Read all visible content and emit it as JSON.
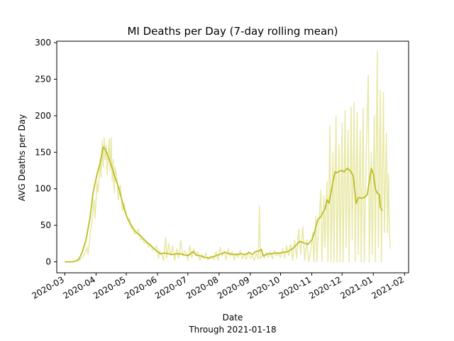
{
  "chart_data": {
    "type": "line",
    "title": "MI Deaths per Day (7-day rolling mean)",
    "xlabel": "Date",
    "xlabel_note": "Through 2021-01-18",
    "ylabel": "AVG Deaths per Day",
    "xlim": [
      "2020-02-22",
      "2021-02-05"
    ],
    "ylim": [
      -15,
      302
    ],
    "x_ticks": [
      "2020-03",
      "2020-04",
      "2020-05",
      "2020-06",
      "2020-07",
      "2020-08",
      "2020-09",
      "2020-10",
      "2020-11",
      "2020-12",
      "2021-01",
      "2021-02"
    ],
    "y_ticks": [
      0,
      50,
      100,
      150,
      200,
      250,
      300
    ],
    "grid": false,
    "legend": "none",
    "colors": {
      "raw": "#e8e8a6",
      "rolling": "#bcbd22"
    },
    "series": [
      {
        "role": "raw",
        "points": [
          [
            "2020-03-01",
            0
          ],
          [
            "2020-03-08",
            0
          ],
          [
            "2020-03-12",
            1
          ],
          [
            "2020-03-15",
            2
          ],
          [
            "2020-03-18",
            5
          ],
          [
            "2020-03-21",
            12
          ],
          [
            "2020-03-23",
            20
          ],
          [
            "2020-03-24",
            10
          ],
          [
            "2020-03-26",
            35
          ],
          [
            "2020-03-28",
            55
          ],
          [
            "2020-03-30",
            85
          ],
          [
            "2020-03-31",
            60
          ],
          [
            "2020-04-02",
            110
          ],
          [
            "2020-04-03",
            95
          ],
          [
            "2020-04-05",
            140
          ],
          [
            "2020-04-06",
            115
          ],
          [
            "2020-04-07",
            165
          ],
          [
            "2020-04-08",
            130
          ],
          [
            "2020-04-09",
            170
          ],
          [
            "2020-04-10",
            140
          ],
          [
            "2020-04-11",
            160
          ],
          [
            "2020-04-12",
            120
          ],
          [
            "2020-04-13",
            145
          ],
          [
            "2020-04-14",
            168
          ],
          [
            "2020-04-15",
            125
          ],
          [
            "2020-04-16",
            170
          ],
          [
            "2020-04-17",
            110
          ],
          [
            "2020-04-18",
            140
          ],
          [
            "2020-04-19",
            95
          ],
          [
            "2020-04-20",
            130
          ],
          [
            "2020-04-22",
            110
          ],
          [
            "2020-04-23",
            85
          ],
          [
            "2020-04-25",
            105
          ],
          [
            "2020-04-27",
            70
          ],
          [
            "2020-04-29",
            80
          ],
          [
            "2020-05-01",
            65
          ],
          [
            "2020-05-03",
            55
          ],
          [
            "2020-05-04",
            60
          ],
          [
            "2020-05-06",
            45
          ],
          [
            "2020-05-07",
            50
          ],
          [
            "2020-05-09",
            38
          ],
          [
            "2020-05-11",
            40
          ],
          [
            "2020-05-13",
            45
          ],
          [
            "2020-05-15",
            30
          ],
          [
            "2020-05-17",
            32
          ],
          [
            "2020-05-19",
            25
          ],
          [
            "2020-05-21",
            28
          ],
          [
            "2020-05-23",
            20
          ],
          [
            "2020-05-25",
            24
          ],
          [
            "2020-05-27",
            16
          ],
          [
            "2020-05-29",
            18
          ],
          [
            "2020-05-31",
            22
          ],
          [
            "2020-06-02",
            5
          ],
          [
            "2020-06-03",
            15
          ],
          [
            "2020-06-05",
            10
          ],
          [
            "2020-06-07",
            2
          ],
          [
            "2020-06-09",
            33
          ],
          [
            "2020-06-10",
            5
          ],
          [
            "2020-06-12",
            25
          ],
          [
            "2020-06-14",
            8
          ],
          [
            "2020-06-16",
            22
          ],
          [
            "2020-06-18",
            2
          ],
          [
            "2020-06-20",
            18
          ],
          [
            "2020-06-22",
            5
          ],
          [
            "2020-06-24",
            30
          ],
          [
            "2020-06-26",
            8
          ],
          [
            "2020-06-28",
            15
          ],
          [
            "2020-06-30",
            10
          ],
          [
            "2020-07-01",
            2
          ],
          [
            "2020-07-03",
            22
          ],
          [
            "2020-07-05",
            5
          ],
          [
            "2020-07-07",
            18
          ],
          [
            "2020-07-09",
            8
          ],
          [
            "2020-07-11",
            14
          ],
          [
            "2020-07-13",
            2
          ],
          [
            "2020-07-15",
            10
          ],
          [
            "2020-07-17",
            5
          ],
          [
            "2020-07-19",
            12
          ],
          [
            "2020-07-21",
            2
          ],
          [
            "2020-07-23",
            8
          ],
          [
            "2020-07-25",
            6
          ],
          [
            "2020-07-27",
            3
          ],
          [
            "2020-07-29",
            14
          ],
          [
            "2020-07-31",
            2
          ],
          [
            "2020-08-02",
            20
          ],
          [
            "2020-08-04",
            8
          ],
          [
            "2020-08-06",
            15
          ],
          [
            "2020-08-08",
            3
          ],
          [
            "2020-08-10",
            18
          ],
          [
            "2020-08-12",
            8
          ],
          [
            "2020-08-14",
            14
          ],
          [
            "2020-08-16",
            2
          ],
          [
            "2020-08-18",
            12
          ],
          [
            "2020-08-20",
            6
          ],
          [
            "2020-08-22",
            16
          ],
          [
            "2020-08-24",
            4
          ],
          [
            "2020-08-26",
            10
          ],
          [
            "2020-08-28",
            3
          ],
          [
            "2020-08-30",
            14
          ],
          [
            "2020-09-01",
            5
          ],
          [
            "2020-09-03",
            8
          ],
          [
            "2020-09-05",
            2
          ],
          [
            "2020-09-07",
            12
          ],
          [
            "2020-09-09",
            4
          ],
          [
            "2020-09-10",
            76
          ],
          [
            "2020-09-11",
            4
          ],
          [
            "2020-09-13",
            10
          ],
          [
            "2020-09-15",
            5
          ],
          [
            "2020-09-17",
            12
          ],
          [
            "2020-09-19",
            6
          ],
          [
            "2020-09-21",
            14
          ],
          [
            "2020-09-23",
            4
          ],
          [
            "2020-09-25",
            16
          ],
          [
            "2020-09-27",
            8
          ],
          [
            "2020-09-29",
            12
          ],
          [
            "2020-10-01",
            6
          ],
          [
            "2020-10-03",
            18
          ],
          [
            "2020-10-05",
            5
          ],
          [
            "2020-10-07",
            22
          ],
          [
            "2020-10-09",
            8
          ],
          [
            "2020-10-11",
            25
          ],
          [
            "2020-10-13",
            2
          ],
          [
            "2020-10-15",
            30
          ],
          [
            "2020-10-17",
            5
          ],
          [
            "2020-10-19",
            45
          ],
          [
            "2020-10-21",
            10
          ],
          [
            "2020-10-23",
            48
          ],
          [
            "2020-10-25",
            2
          ],
          [
            "2020-10-27",
            30
          ],
          [
            "2020-10-29",
            0
          ],
          [
            "2020-10-31",
            15
          ],
          [
            "2020-11-02",
            40
          ],
          [
            "2020-11-03",
            0
          ],
          [
            "2020-11-05",
            62
          ],
          [
            "2020-11-06",
            0
          ],
          [
            "2020-11-08",
            50
          ],
          [
            "2020-11-10",
            98
          ],
          [
            "2020-11-11",
            0
          ],
          [
            "2020-11-13",
            90
          ],
          [
            "2020-11-14",
            20
          ],
          [
            "2020-11-16",
            110
          ],
          [
            "2020-11-17",
            0
          ],
          [
            "2020-11-19",
            186
          ],
          [
            "2020-11-20",
            0
          ],
          [
            "2020-11-22",
            150
          ],
          [
            "2020-11-23",
            0
          ],
          [
            "2020-11-25",
            200
          ],
          [
            "2020-11-26",
            0
          ],
          [
            "2020-11-28",
            160
          ],
          [
            "2020-11-29",
            0
          ],
          [
            "2020-12-01",
            190
          ],
          [
            "2020-12-02",
            0
          ],
          [
            "2020-12-04",
            207
          ],
          [
            "2020-12-05",
            20
          ],
          [
            "2020-12-07",
            180
          ],
          [
            "2020-12-08",
            0
          ],
          [
            "2020-12-10",
            212
          ],
          [
            "2020-12-11",
            30
          ],
          [
            "2020-12-13",
            218
          ],
          [
            "2020-12-14",
            0
          ],
          [
            "2020-12-16",
            205
          ],
          [
            "2020-12-17",
            10
          ],
          [
            "2020-12-19",
            180
          ],
          [
            "2020-12-20",
            0
          ],
          [
            "2020-12-22",
            210
          ],
          [
            "2020-12-23",
            0
          ],
          [
            "2020-12-25",
            150
          ],
          [
            "2020-12-27",
            256
          ],
          [
            "2020-12-28",
            0
          ],
          [
            "2020-12-30",
            150
          ],
          [
            "2020-12-31",
            10
          ],
          [
            "2021-01-02",
            200
          ],
          [
            "2021-01-03",
            0
          ],
          [
            "2021-01-05",
            288
          ],
          [
            "2021-01-06",
            20
          ],
          [
            "2021-01-08",
            235
          ],
          [
            "2021-01-09",
            0
          ],
          [
            "2021-01-11",
            232
          ],
          [
            "2021-01-12",
            40
          ],
          [
            "2021-01-14",
            176
          ],
          [
            "2021-01-15",
            40
          ],
          [
            "2021-01-16",
            120
          ],
          [
            "2021-01-17",
            40
          ],
          [
            "2021-01-18",
            18
          ]
        ]
      },
      {
        "role": "rolling",
        "points": [
          [
            "2020-03-01",
            0
          ],
          [
            "2020-03-08",
            0
          ],
          [
            "2020-03-12",
            1
          ],
          [
            "2020-03-15",
            4
          ],
          [
            "2020-03-18",
            12
          ],
          [
            "2020-03-22",
            30
          ],
          [
            "2020-03-26",
            60
          ],
          [
            "2020-03-29",
            95
          ],
          [
            "2020-04-02",
            120
          ],
          [
            "2020-04-05",
            135
          ],
          [
            "2020-04-07",
            150
          ],
          [
            "2020-04-08",
            157
          ],
          [
            "2020-04-10",
            155
          ],
          [
            "2020-04-12",
            148
          ],
          [
            "2020-04-14",
            140
          ],
          [
            "2020-04-17",
            128
          ],
          [
            "2020-04-20",
            115
          ],
          [
            "2020-04-23",
            103
          ],
          [
            "2020-04-26",
            88
          ],
          [
            "2020-04-29",
            72
          ],
          [
            "2020-05-02",
            60
          ],
          [
            "2020-05-05",
            52
          ],
          [
            "2020-05-08",
            45
          ],
          [
            "2020-05-11",
            40
          ],
          [
            "2020-05-15",
            36
          ],
          [
            "2020-05-19",
            30
          ],
          [
            "2020-05-23",
            25
          ],
          [
            "2020-05-27",
            20
          ],
          [
            "2020-05-31",
            15
          ],
          [
            "2020-06-04",
            11
          ],
          [
            "2020-06-08",
            12
          ],
          [
            "2020-06-12",
            11
          ],
          [
            "2020-06-16",
            10
          ],
          [
            "2020-06-20",
            11
          ],
          [
            "2020-06-24",
            11
          ],
          [
            "2020-06-28",
            9
          ],
          [
            "2020-07-02",
            9
          ],
          [
            "2020-07-06",
            14
          ],
          [
            "2020-07-10",
            9
          ],
          [
            "2020-07-14",
            8
          ],
          [
            "2020-07-18",
            6
          ],
          [
            "2020-07-22",
            5
          ],
          [
            "2020-07-26",
            7
          ],
          [
            "2020-07-30",
            9
          ],
          [
            "2020-08-03",
            11
          ],
          [
            "2020-08-07",
            13
          ],
          [
            "2020-08-11",
            11
          ],
          [
            "2020-08-15",
            10
          ],
          [
            "2020-08-19",
            10
          ],
          [
            "2020-08-23",
            11
          ],
          [
            "2020-08-27",
            10
          ],
          [
            "2020-08-31",
            13
          ],
          [
            "2020-09-03",
            10
          ],
          [
            "2020-09-06",
            14
          ],
          [
            "2020-09-10",
            15
          ],
          [
            "2020-09-12",
            17
          ],
          [
            "2020-09-14",
            8
          ],
          [
            "2020-09-18",
            11
          ],
          [
            "2020-09-22",
            11
          ],
          [
            "2020-09-26",
            12
          ],
          [
            "2020-09-30",
            12
          ],
          [
            "2020-10-04",
            13
          ],
          [
            "2020-10-08",
            14
          ],
          [
            "2020-10-12",
            17
          ],
          [
            "2020-10-16",
            22
          ],
          [
            "2020-10-20",
            28
          ],
          [
            "2020-10-24",
            26
          ],
          [
            "2020-10-28",
            24
          ],
          [
            "2020-11-01",
            30
          ],
          [
            "2020-11-04",
            42
          ],
          [
            "2020-11-07",
            58
          ],
          [
            "2020-11-10",
            62
          ],
          [
            "2020-11-12",
            68
          ],
          [
            "2020-11-14",
            72
          ],
          [
            "2020-11-16",
            85
          ],
          [
            "2020-11-18",
            80
          ],
          [
            "2020-11-20",
            95
          ],
          [
            "2020-11-22",
            110
          ],
          [
            "2020-11-24",
            123
          ],
          [
            "2020-11-26",
            122
          ],
          [
            "2020-11-28",
            124
          ],
          [
            "2020-12-01",
            125
          ],
          [
            "2020-12-03",
            123
          ],
          [
            "2020-12-06",
            128
          ],
          [
            "2020-12-09",
            125
          ],
          [
            "2020-12-12",
            118
          ],
          [
            "2020-12-15",
            80
          ],
          [
            "2020-12-17",
            88
          ],
          [
            "2020-12-20",
            87
          ],
          [
            "2020-12-23",
            88
          ],
          [
            "2020-12-26",
            92
          ],
          [
            "2020-12-28",
            110
          ],
          [
            "2020-12-30",
            128
          ],
          [
            "2021-01-01",
            120
          ],
          [
            "2021-01-03",
            100
          ],
          [
            "2021-01-05",
            94
          ],
          [
            "2021-01-07",
            92
          ],
          [
            "2021-01-08",
            75
          ],
          [
            "2021-01-10",
            70
          ]
        ]
      }
    ]
  }
}
